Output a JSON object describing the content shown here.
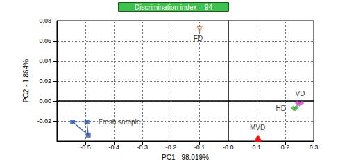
{
  "chart_data": {
    "type": "scatter",
    "title": "Discrimination index = 94",
    "x_label": "PC1 - 98.019%",
    "y_label": "PC2 - 1.864%",
    "xlim": [
      -0.6,
      0.3
    ],
    "ylim": [
      -0.04,
      0.08
    ],
    "xticks": [
      -0.5,
      -0.4,
      -0.3,
      -0.2,
      -0.1,
      {
        "value": 0,
        "label": "-0.0"
      },
      0.1,
      0.2,
      0.3
    ],
    "yticks": [
      -0.02,
      {
        "value": 0,
        "label": "0.00"
      },
      0.02,
      0.04,
      0.06,
      0.08
    ],
    "grid": true,
    "series": [
      {
        "name": "Fresh sample",
        "color": "#3355aa",
        "marker": "square",
        "line_style": "solid",
        "values": [
          [
            -0.545,
            -0.021
          ],
          [
            -0.495,
            -0.021
          ],
          [
            -0.49,
            -0.034
          ]
        ]
      },
      {
        "name": "FD",
        "color": "#b0703a",
        "marker": "x",
        "values": [
          [
            -0.105,
            0.073
          ],
          [
            -0.095,
            0.073
          ],
          [
            -0.1,
            0.071
          ]
        ]
      },
      {
        "name": "VD",
        "color": "#cc44cc",
        "marker": "diamond",
        "values": [
          [
            0.243,
            -0.002
          ],
          [
            0.258,
            -0.002
          ],
          [
            0.25,
            -0.003
          ]
        ]
      },
      {
        "name": "HD",
        "color": "#44aa44",
        "marker": "diamond",
        "values": [
          [
            0.228,
            -0.007
          ],
          [
            0.24,
            -0.006
          ],
          [
            0.235,
            -0.008
          ]
        ]
      },
      {
        "name": "MVD",
        "color": "#ee1111",
        "marker": "triangle",
        "values": [
          [
            0.103,
            -0.037
          ],
          [
            0.107,
            -0.037
          ],
          [
            0.105,
            -0.038
          ]
        ]
      }
    ]
  }
}
